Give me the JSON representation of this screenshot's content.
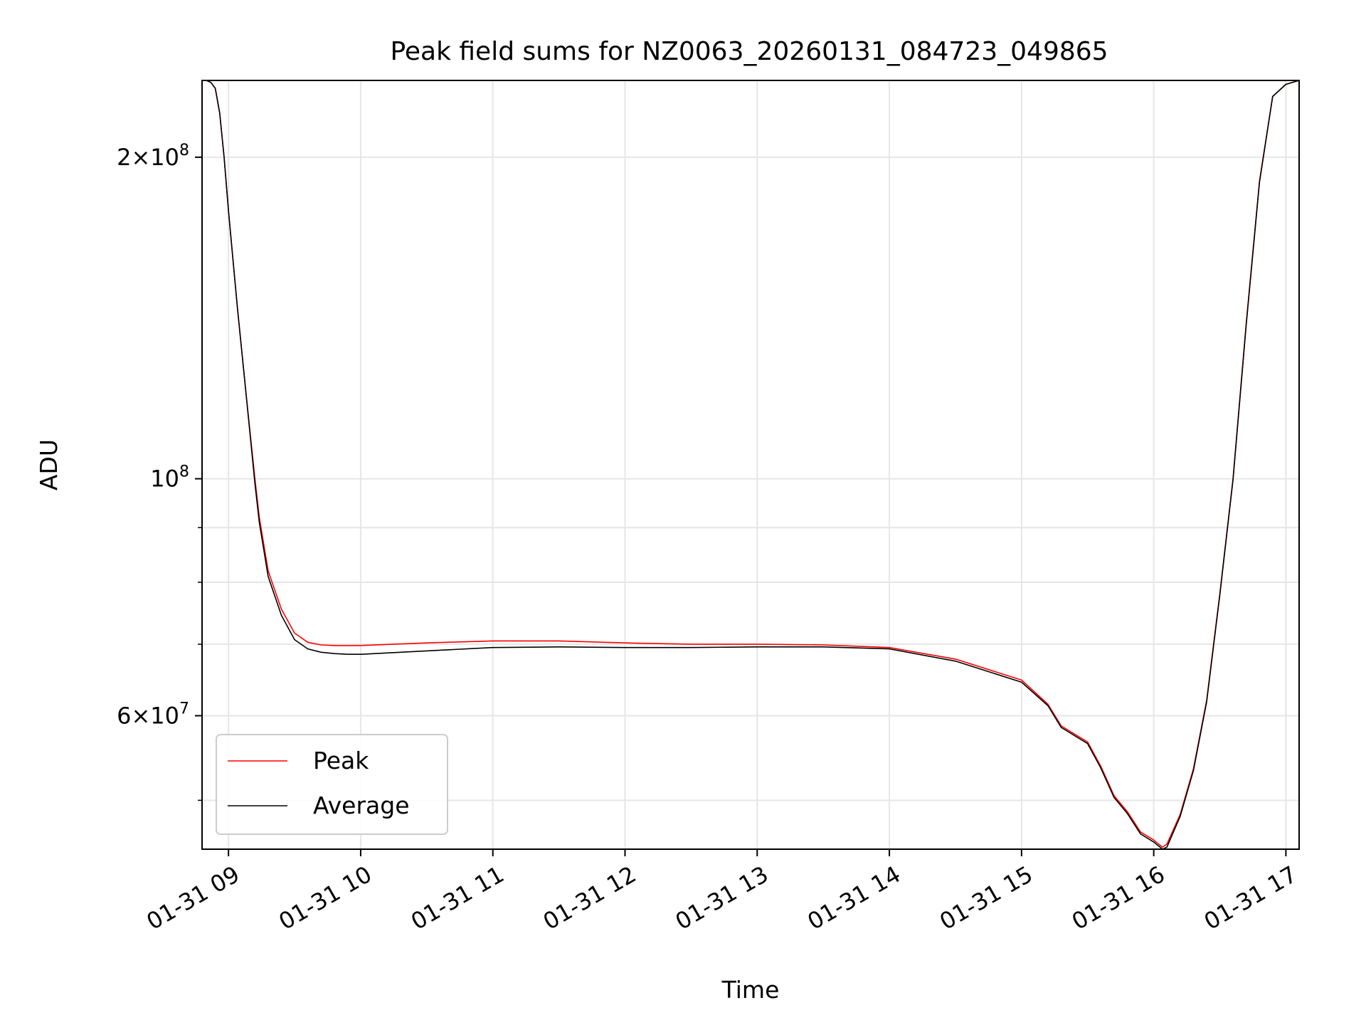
{
  "chart_data": {
    "type": "line",
    "title": "Peak field sums for NZ0063_20260131_084723_049865",
    "xlabel": "Time",
    "ylabel": "ADU",
    "yscale": "log",
    "grid": true,
    "legend_position": "lower-left",
    "xlim": [
      "2026-01-31 08:48",
      "2026-01-31 17:06"
    ],
    "ylim": [
      45000000,
      236000000
    ],
    "x_ticks": [
      "2026-01-31 09:00",
      "2026-01-31 10:00",
      "2026-01-31 11:00",
      "2026-01-31 12:00",
      "2026-01-31 13:00",
      "2026-01-31 14:00",
      "2026-01-31 15:00",
      "2026-01-31 16:00",
      "2026-01-31 17:00"
    ],
    "x_tick_labels": [
      "01-31 09",
      "01-31 10",
      "01-31 11",
      "01-31 12",
      "01-31 13",
      "01-31 14",
      "01-31 15",
      "01-31 16",
      "01-31 17"
    ],
    "y_major_ticks": [
      {
        "value": 200000000,
        "mantissa": "2",
        "exponent": "8"
      },
      {
        "value": 100000000,
        "mantissa": "",
        "exponent": "8"
      },
      {
        "value": 60000000,
        "mantissa": "6",
        "exponent": "7"
      }
    ],
    "y_minor_ticks": [
      50000000,
      70000000,
      80000000,
      90000000
    ],
    "series": [
      {
        "name": "Peak",
        "color": "#ff0000",
        "x": [
          "2026-01-31 08:48",
          "2026-01-31 08:50",
          "2026-01-31 08:52",
          "2026-01-31 08:54",
          "2026-01-31 08:56",
          "2026-01-31 08:58",
          "2026-01-31 09:00",
          "2026-01-31 09:04",
          "2026-01-31 09:08",
          "2026-01-31 09:12",
          "2026-01-31 09:14",
          "2026-01-31 09:18",
          "2026-01-31 09:24",
          "2026-01-31 09:30",
          "2026-01-31 09:36",
          "2026-01-31 09:42",
          "2026-01-31 09:48",
          "2026-01-31 09:54",
          "2026-01-31 10:00",
          "2026-01-31 10:30",
          "2026-01-31 11:00",
          "2026-01-31 11:30",
          "2026-01-31 12:00",
          "2026-01-31 12:30",
          "2026-01-31 13:00",
          "2026-01-31 13:30",
          "2026-01-31 14:00",
          "2026-01-31 14:30",
          "2026-01-31 15:00",
          "2026-01-31 15:12",
          "2026-01-31 15:18",
          "2026-01-31 15:30",
          "2026-01-31 15:36",
          "2026-01-31 15:42",
          "2026-01-31 15:48",
          "2026-01-31 15:54",
          "2026-01-31 16:00",
          "2026-01-31 16:04",
          "2026-01-31 16:06",
          "2026-01-31 16:12",
          "2026-01-31 16:18",
          "2026-01-31 16:24",
          "2026-01-31 16:30",
          "2026-01-31 16:36",
          "2026-01-31 16:42",
          "2026-01-31 16:48",
          "2026-01-31 16:54",
          "2026-01-31 17:00",
          "2026-01-31 17:06"
        ],
        "y": [
          236000000,
          236000000,
          235000000,
          232000000,
          220000000,
          200000000,
          178000000,
          145000000,
          120000000,
          100000000,
          92000000,
          82000000,
          75500000,
          71700000,
          70300000,
          69900000,
          69800000,
          69800000,
          69800000,
          70200000,
          70500000,
          70500000,
          70200000,
          70000000,
          70000000,
          69900000,
          69500000,
          67800000,
          64800000,
          61500000,
          58700000,
          56700000,
          53800000,
          50500000,
          48800000,
          46700000,
          45900000,
          45200000,
          45500000,
          48500000,
          53500000,
          62000000,
          78000000,
          100000000,
          140000000,
          190000000,
          228000000,
          234000000,
          236000000
        ]
      },
      {
        "name": "Average",
        "color": "#000000",
        "x": [
          "2026-01-31 08:48",
          "2026-01-31 08:50",
          "2026-01-31 08:52",
          "2026-01-31 08:54",
          "2026-01-31 08:56",
          "2026-01-31 08:58",
          "2026-01-31 09:00",
          "2026-01-31 09:04",
          "2026-01-31 09:08",
          "2026-01-31 09:12",
          "2026-01-31 09:14",
          "2026-01-31 09:18",
          "2026-01-31 09:24",
          "2026-01-31 09:30",
          "2026-01-31 09:36",
          "2026-01-31 09:42",
          "2026-01-31 09:48",
          "2026-01-31 09:54",
          "2026-01-31 10:00",
          "2026-01-31 10:30",
          "2026-01-31 11:00",
          "2026-01-31 11:30",
          "2026-01-31 12:00",
          "2026-01-31 12:30",
          "2026-01-31 13:00",
          "2026-01-31 13:30",
          "2026-01-31 14:00",
          "2026-01-31 14:30",
          "2026-01-31 15:00",
          "2026-01-31 15:12",
          "2026-01-31 15:18",
          "2026-01-31 15:30",
          "2026-01-31 15:36",
          "2026-01-31 15:42",
          "2026-01-31 15:48",
          "2026-01-31 15:54",
          "2026-01-31 16:00",
          "2026-01-31 16:04",
          "2026-01-31 16:06",
          "2026-01-31 16:12",
          "2026-01-31 16:18",
          "2026-01-31 16:24",
          "2026-01-31 16:30",
          "2026-01-31 16:36",
          "2026-01-31 16:42",
          "2026-01-31 16:48",
          "2026-01-31 16:54",
          "2026-01-31 17:00",
          "2026-01-31 17:06"
        ],
        "y": [
          236000000,
          236000000,
          235000000,
          232000000,
          220000000,
          200000000,
          178000000,
          145000000,
          120000000,
          99000000,
          91000000,
          81000000,
          74500000,
          70700000,
          69300000,
          68800000,
          68600000,
          68500000,
          68500000,
          69000000,
          69500000,
          69600000,
          69500000,
          69500000,
          69600000,
          69600000,
          69300000,
          67500000,
          64500000,
          61300000,
          58500000,
          56500000,
          53600000,
          50300000,
          48600000,
          46500000,
          45700000,
          45000000,
          45200000,
          48300000,
          53300000,
          61800000,
          77800000,
          99800000,
          139500000,
          189500000,
          228000000,
          234000000,
          236000000
        ]
      }
    ]
  }
}
